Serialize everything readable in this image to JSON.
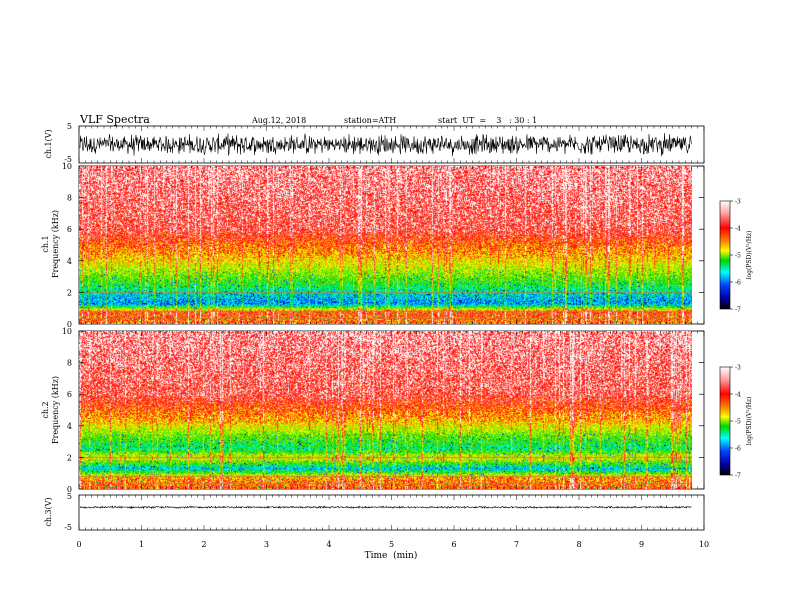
{
  "header": {
    "title": "VLF  Spectra",
    "date": "Aug.12, 2018",
    "station": "station=ATH",
    "start": "start  UT  =    3   : 30 : 1"
  },
  "axes": {
    "ch1_voltage_label": "ch.1(V)",
    "ch3_voltage_label": "ch.3(V)",
    "ch1_spec_label_a": "ch.1",
    "ch2_spec_label_a": "ch.2",
    "freq_label": "Frequency  (kHz)",
    "time_label": "Time  (min)",
    "colorbar_label": "log(PSD)(V²/Hz)"
  },
  "chart_data": [
    {
      "type": "line",
      "name": "ch1-waveform",
      "ylabel": "ch.1(V)",
      "ylim": [
        -5,
        5
      ],
      "xlim": [
        0,
        10
      ],
      "y_ticks": [
        "5",
        "-5"
      ],
      "trace": {
        "x_end_min": 9.8,
        "mean": 0,
        "amplitude": 2.5,
        "color": "#000000"
      }
    },
    {
      "type": "heatmap",
      "name": "ch1-spectrogram",
      "xlabel": "Time  (min)",
      "ylabel": "Frequency  (kHz)",
      "xlim": [
        0,
        10
      ],
      "ylim": [
        0,
        10
      ],
      "x_end_min": 9.8,
      "y_ticks": [
        "0",
        "2",
        "4",
        "6",
        "8",
        "10"
      ],
      "z_range": [
        -7,
        -3
      ],
      "colorbar_ticks": [
        "-3",
        "-4",
        "-5",
        "-6",
        "-7"
      ],
      "profile": [
        {
          "f_khz": 0.2,
          "logpsd": -3.8
        },
        {
          "f_khz": 0.8,
          "logpsd": -3.6
        },
        {
          "f_khz": 1.3,
          "logpsd": -5.8
        },
        {
          "f_khz": 1.9,
          "logpsd": -5.5
        },
        {
          "f_khz": 2.5,
          "logpsd": -5.0
        },
        {
          "f_khz": 3.2,
          "logpsd": -4.6
        },
        {
          "f_khz": 4.2,
          "logpsd": -4.1
        },
        {
          "f_khz": 6.0,
          "logpsd": -3.4
        },
        {
          "f_khz": 10.0,
          "logpsd": -3.2
        }
      ]
    },
    {
      "type": "heatmap",
      "name": "ch2-spectrogram",
      "xlabel": "Time  (min)",
      "ylabel": "Frequency  (kHz)",
      "xlim": [
        0,
        10
      ],
      "ylim": [
        0,
        10
      ],
      "x_end_min": 9.8,
      "y_ticks": [
        "0",
        "2",
        "4",
        "6",
        "8",
        "10"
      ],
      "z_range": [
        -7,
        -3
      ],
      "colorbar_ticks": [
        "-3",
        "-4",
        "-5",
        "-6",
        "-7"
      ],
      "profile": [
        {
          "f_khz": 0.2,
          "logpsd": -3.7
        },
        {
          "f_khz": 0.8,
          "logpsd": -4.0
        },
        {
          "f_khz": 1.3,
          "logpsd": -5.6
        },
        {
          "f_khz": 2.0,
          "logpsd": -4.2
        },
        {
          "f_khz": 2.6,
          "logpsd": -5.2
        },
        {
          "f_khz": 3.4,
          "logpsd": -4.7
        },
        {
          "f_khz": 4.4,
          "logpsd": -4.0
        },
        {
          "f_khz": 6.0,
          "logpsd": -3.4
        },
        {
          "f_khz": 10.0,
          "logpsd": -3.2
        }
      ]
    },
    {
      "type": "line",
      "name": "ch3-waveform",
      "ylabel": "ch.3(V)",
      "xlabel": "Time  (min)",
      "ylim": [
        -5,
        5
      ],
      "xlim": [
        0,
        10
      ],
      "y_ticks": [
        "5",
        "-5"
      ],
      "x_ticks": [
        "0",
        "1",
        "2",
        "3",
        "4",
        "5",
        "6",
        "7",
        "8",
        "9",
        "10"
      ],
      "trace": {
        "x_end_min": 9.8,
        "mean": 1.5,
        "amplitude": 0.25,
        "color": "#000000"
      }
    }
  ]
}
